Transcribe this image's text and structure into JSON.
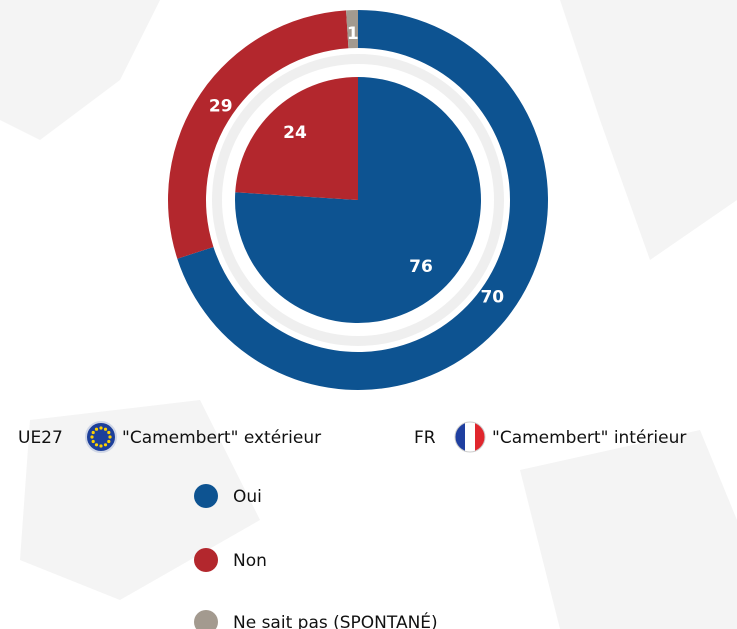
{
  "chart_data": {
    "type": "pie",
    "categories": [
      "Oui",
      "Non",
      "Ne sait pas (SPONTANÉ)"
    ],
    "colors": [
      "#0d5391",
      "#b3272d",
      "#a39a8f"
    ],
    "series": [
      {
        "name": "UE27",
        "description": "\"Camembert\" extérieur",
        "values": [
          70,
          29,
          1
        ]
      },
      {
        "name": "FR",
        "description": "\"Camembert\" intérieur",
        "values": [
          76,
          24,
          null
        ]
      }
    ]
  }
}
